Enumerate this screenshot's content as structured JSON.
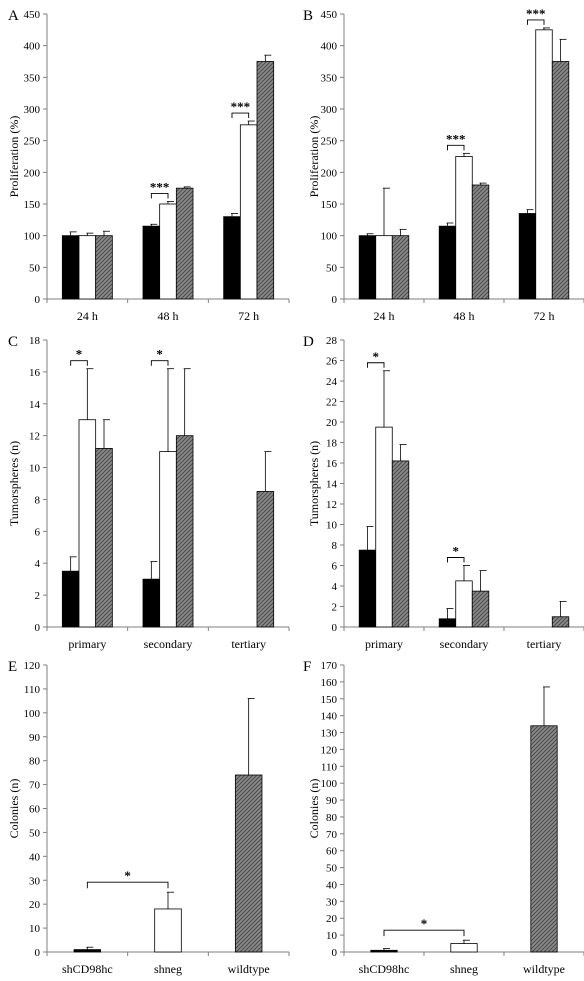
{
  "chart_data": [
    {
      "panel": "A",
      "type": "bar",
      "ylabel": "Proliferation (%)",
      "ylim": [
        0,
        450
      ],
      "yticks": [
        0,
        50,
        100,
        150,
        200,
        250,
        300,
        350,
        400,
        450
      ],
      "categories": [
        "24 h",
        "48 h",
        "72 h"
      ],
      "series": [
        {
          "fill": "#000000",
          "values": [
            100,
            115,
            130
          ],
          "errors": [
            6,
            3,
            5
          ]
        },
        {
          "fill": "#ffffff",
          "values": [
            100,
            150,
            275
          ],
          "errors": [
            4,
            4,
            6
          ]
        },
        {
          "fill": "#8a8a8a",
          "hatch": true,
          "values": [
            100,
            175,
            375
          ],
          "errors": [
            7,
            2,
            10
          ]
        }
      ],
      "significance": [
        {
          "category": 1,
          "from": 0,
          "to": 1,
          "label": "***"
        },
        {
          "category": 2,
          "from": 0,
          "to": 1,
          "label": "***"
        }
      ]
    },
    {
      "panel": "B",
      "type": "bar",
      "ylabel": "Proliferation (%)",
      "ylim": [
        0,
        450
      ],
      "yticks": [
        0,
        50,
        100,
        150,
        200,
        250,
        300,
        350,
        400,
        450
      ],
      "categories": [
        "24 h",
        "48 h",
        "72 h"
      ],
      "series": [
        {
          "fill": "#000000",
          "values": [
            100,
            115,
            135
          ],
          "errors": [
            3,
            5,
            6
          ]
        },
        {
          "fill": "#ffffff",
          "values": [
            100,
            225,
            425
          ],
          "errors": [
            75,
            5,
            3
          ]
        },
        {
          "fill": "#8a8a8a",
          "hatch": true,
          "values": [
            100,
            180,
            375
          ],
          "errors": [
            10,
            3,
            35
          ]
        }
      ],
      "significance": [
        {
          "category": 1,
          "from": 0,
          "to": 1,
          "label": "***"
        },
        {
          "category": 2,
          "from": 0,
          "to": 1,
          "label": "***"
        }
      ]
    },
    {
      "panel": "C",
      "type": "bar",
      "ylabel": "Tumorspheres (n)",
      "ylim": [
        0,
        18
      ],
      "yticks": [
        0,
        2,
        4,
        6,
        8,
        10,
        12,
        14,
        16,
        18
      ],
      "categories": [
        "primary",
        "secondary",
        "tertiary"
      ],
      "series": [
        {
          "fill": "#000000",
          "values": [
            3.5,
            3.0,
            0
          ],
          "errors": [
            0.9,
            1.1,
            0
          ]
        },
        {
          "fill": "#ffffff",
          "values": [
            13.0,
            11.0,
            0
          ],
          "errors": [
            3.2,
            5.2,
            0
          ]
        },
        {
          "fill": "#8a8a8a",
          "hatch": true,
          "values": [
            11.2,
            12.0,
            8.5
          ],
          "errors": [
            1.8,
            4.2,
            2.5
          ]
        }
      ],
      "significance": [
        {
          "category": 0,
          "from": 0,
          "to": 1,
          "label": "*"
        },
        {
          "category": 1,
          "from": 0,
          "to": 1,
          "label": "*"
        }
      ]
    },
    {
      "panel": "D",
      "type": "bar",
      "ylabel": "Tumorspheres (n)",
      "ylim": [
        0,
        28
      ],
      "yticks": [
        0,
        2,
        4,
        6,
        8,
        10,
        12,
        14,
        16,
        18,
        20,
        22,
        24,
        26,
        28
      ],
      "categories": [
        "primary",
        "secondary",
        "tertiary"
      ],
      "series": [
        {
          "fill": "#000000",
          "values": [
            7.5,
            0.8,
            0
          ],
          "errors": [
            2.3,
            1.0,
            0
          ]
        },
        {
          "fill": "#ffffff",
          "values": [
            19.5,
            4.5,
            0
          ],
          "errors": [
            5.5,
            1.5,
            0
          ]
        },
        {
          "fill": "#8a8a8a",
          "hatch": true,
          "values": [
            16.2,
            3.5,
            1.0
          ],
          "errors": [
            1.6,
            2.0,
            1.5
          ]
        }
      ],
      "significance": [
        {
          "category": 0,
          "from": 0,
          "to": 1,
          "label": "*"
        },
        {
          "category": 1,
          "from": 0,
          "to": 1,
          "label": "*"
        }
      ]
    },
    {
      "panel": "E",
      "type": "bar",
      "ylabel": "Colonies (n)",
      "ylim": [
        0,
        120
      ],
      "yticks": [
        0,
        10,
        20,
        30,
        40,
        50,
        60,
        70,
        80,
        90,
        100,
        110,
        120
      ],
      "categories": [
        "shCD98hc",
        "shneg",
        "wildtype"
      ],
      "series": [
        {
          "fills": [
            "#000000",
            "#ffffff",
            "#8a8a8a"
          ],
          "hatch_index": 2,
          "values": [
            1,
            18,
            74
          ],
          "errors": [
            1,
            7,
            32
          ]
        }
      ],
      "significance": [
        {
          "from_category": 0,
          "to_category": 1,
          "label": "*"
        }
      ]
    },
    {
      "panel": "F",
      "type": "bar",
      "ylabel": "Colonies (n)",
      "ylim": [
        0,
        170
      ],
      "yticks": [
        0,
        10,
        20,
        30,
        40,
        50,
        60,
        70,
        80,
        90,
        100,
        110,
        120,
        130,
        140,
        150,
        160,
        170
      ],
      "categories": [
        "shCD98hc",
        "shneg",
        "wildtype"
      ],
      "series": [
        {
          "fills": [
            "#000000",
            "#ffffff",
            "#8a8a8a"
          ],
          "hatch_index": 2,
          "values": [
            1,
            5,
            134
          ],
          "errors": [
            1,
            2,
            23
          ]
        }
      ],
      "significance": [
        {
          "from_category": 0,
          "to_category": 1,
          "label": "*"
        }
      ]
    }
  ]
}
